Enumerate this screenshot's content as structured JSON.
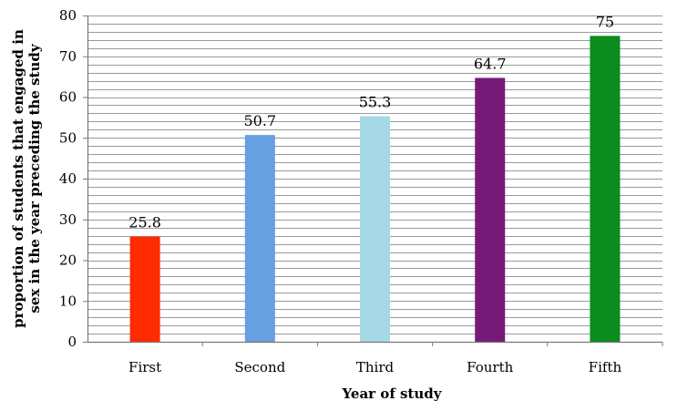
{
  "chart_data": {
    "type": "bar",
    "title": "",
    "xlabel": "Year of study",
    "ylabel_lines": [
      "proportion of students that engaged in",
      "sex in the year preceding the study"
    ],
    "categories": [
      "First",
      "Second",
      "Third",
      "Fourth",
      "Fifth"
    ],
    "values": [
      25.8,
      50.7,
      55.3,
      64.7,
      75
    ],
    "value_labels": [
      "25.8",
      "50.7",
      "55.3",
      "64.7",
      "75"
    ],
    "colors": [
      "#ff2a00",
      "#66a0e0",
      "#a6d8e6",
      "#761a78",
      "#0a8c1e"
    ],
    "ylim": [
      0,
      80
    ],
    "y_ticks": [
      0,
      10,
      20,
      30,
      40,
      50,
      60,
      70,
      80
    ],
    "grid": true,
    "minor_grid_step": 2,
    "legend": "none"
  }
}
